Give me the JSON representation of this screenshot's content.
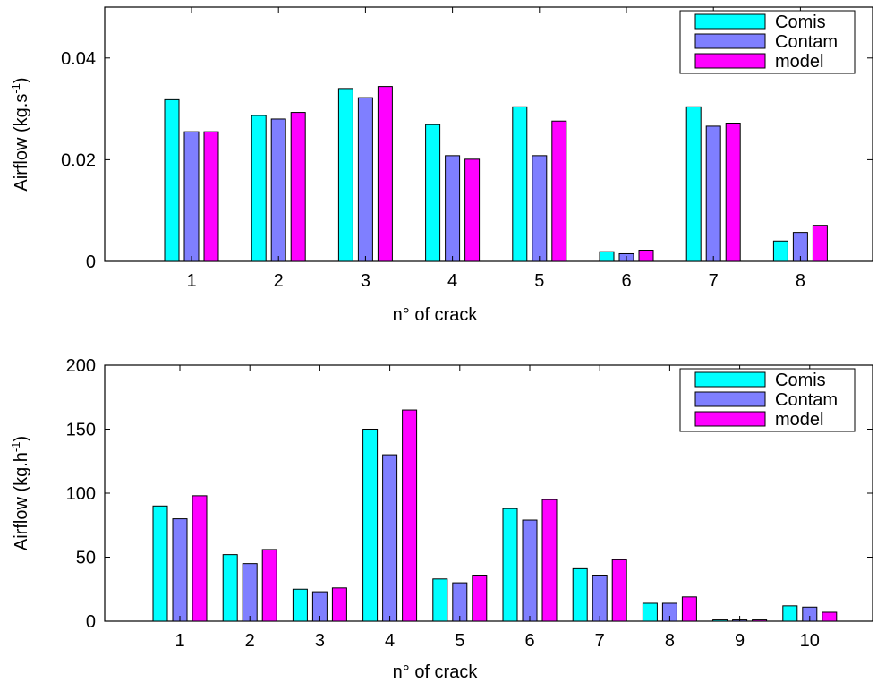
{
  "chart_data": [
    {
      "type": "bar",
      "xlabel": "n° of crack",
      "ylabel": "Airflow (kg.s",
      "ylabel_sup": "-1",
      "ylabel_end": ")",
      "categories": [
        "1",
        "2",
        "3",
        "4",
        "5",
        "6",
        "7",
        "8"
      ],
      "ylim": [
        0,
        0.05
      ],
      "yticks": [
        0,
        0.02,
        0.04
      ],
      "ytick_labels": [
        "0",
        "0.02",
        "0.04"
      ],
      "legend_position": "top-right",
      "series": [
        {
          "name": "Comis",
          "color": "#00ffff",
          "values": [
            0.0318,
            0.0287,
            0.034,
            0.0269,
            0.0304,
            0.0019,
            0.0304,
            0.004
          ]
        },
        {
          "name": "Contam",
          "color": "#7f7fff",
          "values": [
            0.0255,
            0.028,
            0.0322,
            0.0208,
            0.0208,
            0.0015,
            0.0266,
            0.0057
          ]
        },
        {
          "name": "model",
          "color": "#ff00ff",
          "values": [
            0.0255,
            0.0293,
            0.0344,
            0.0201,
            0.0276,
            0.0022,
            0.0272,
            0.0071
          ]
        }
      ]
    },
    {
      "type": "bar",
      "xlabel": "n° of crack",
      "ylabel": "Airflow (kg.h",
      "ylabel_sup": "-1",
      "ylabel_end": ")",
      "categories": [
        "1",
        "2",
        "3",
        "4",
        "5",
        "6",
        "7",
        "8",
        "9",
        "10"
      ],
      "ylim": [
        0,
        200
      ],
      "yticks": [
        0,
        50,
        100,
        150,
        200
      ],
      "ytick_labels": [
        "0",
        "50",
        "100",
        "150",
        "200"
      ],
      "legend_position": "top-right",
      "series": [
        {
          "name": "Comis",
          "color": "#00ffff",
          "values": [
            90,
            52,
            25,
            150,
            33,
            88,
            41,
            14,
            1,
            12
          ]
        },
        {
          "name": "Contam",
          "color": "#7f7fff",
          "values": [
            80,
            45,
            23,
            130,
            30,
            79,
            36,
            14,
            1,
            11
          ]
        },
        {
          "name": "model",
          "color": "#ff00ff",
          "values": [
            98,
            56,
            26,
            165,
            36,
            95,
            48,
            19,
            1,
            7
          ]
        }
      ]
    }
  ]
}
